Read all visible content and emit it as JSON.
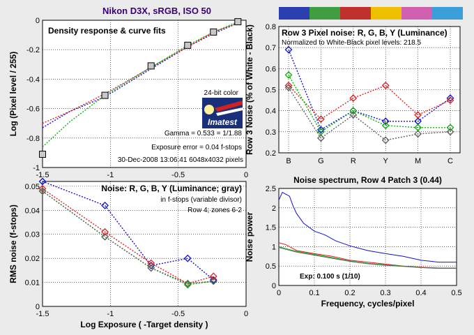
{
  "page_title": "Nikon D3X, sRGB, ISO 50",
  "colors": {
    "title": "#3a007a",
    "red": "#e02020",
    "green": "#10b010",
    "blue": "#1010d0",
    "gray": "#606060",
    "pink": "#e08890",
    "swatches": [
      "#2b3fb0",
      "#3f9e3f",
      "#c0302c",
      "#f0c000",
      "#d060b0",
      "#3a9ed8"
    ]
  },
  "logo": {
    "name": "imatest-logo",
    "text": "Imatest",
    "label": "24-bit color"
  },
  "chart_data": [
    {
      "id": "density",
      "type": "line",
      "title": "Density response & curve fits",
      "xlabel": "",
      "ylabel": "Log (Pixel level / 255)",
      "xlim": [
        -1.5,
        0
      ],
      "ylim": [
        -1,
        0
      ],
      "xticks": [
        -1.5,
        -1,
        -0.5,
        0
      ],
      "yticks": [
        -1,
        -0.8,
        -0.6,
        -0.4,
        -0.2,
        0
      ],
      "grid": true,
      "markers": {
        "x": [
          -1.5,
          -1.04,
          -0.7,
          -0.43,
          -0.24,
          -0.06
        ],
        "y": [
          -0.91,
          -0.51,
          -0.31,
          -0.17,
          -0.08,
          -0.01
        ]
      },
      "fits": [
        {
          "color": "blue",
          "x": [
            -1.5,
            -1.3,
            -1.04,
            -0.7,
            -0.43,
            -0.24,
            -0.06
          ],
          "y": [
            -0.73,
            -0.62,
            -0.52,
            -0.33,
            -0.18,
            -0.09,
            -0.02
          ]
        },
        {
          "color": "red",
          "x": [
            -1.5,
            -1.3,
            -1.04,
            -0.7,
            -0.43,
            -0.24,
            -0.06
          ],
          "y": [
            -0.7,
            -0.62,
            -0.5,
            -0.32,
            -0.18,
            -0.08,
            -0.02
          ]
        },
        {
          "color": "green",
          "x": [
            -1.5,
            -1.3,
            -1.04,
            -0.7,
            -0.43,
            -0.24,
            -0.06
          ],
          "y": [
            -0.86,
            -0.69,
            -0.51,
            -0.32,
            -0.17,
            -0.08,
            -0.01
          ]
        }
      ],
      "annotations": {
        "gamma": "Gamma = 0.533 = 1/1.88",
        "exposure_error": "Exposure error = 0.04 f-stops",
        "footer": "30-Dec-2008 13:06:41   6048x4032 pixels"
      }
    },
    {
      "id": "row3",
      "type": "line",
      "title": "Row 3 Pixel noise: R, G, B, Y (Luminance)",
      "subtitle": "Normalized to White-Black pixel levels: 218.5",
      "ylabel": "Row 3 Noise (% of White - Black)",
      "categories": [
        "B",
        "G",
        "R",
        "Y",
        "M",
        "C"
      ],
      "ylim": [
        0.2,
        0.8
      ],
      "yticks": [
        0.2,
        0.3,
        0.4,
        0.5,
        0.6,
        0.7,
        0.8
      ],
      "grid": true,
      "series": [
        {
          "color": "blue",
          "values": [
            0.69,
            0.31,
            0.4,
            0.35,
            0.35,
            0.46
          ]
        },
        {
          "color": "red",
          "values": [
            0.52,
            0.36,
            0.46,
            0.52,
            0.38,
            0.45
          ]
        },
        {
          "color": "green",
          "values": [
            0.57,
            0.3,
            0.4,
            0.33,
            0.32,
            0.32
          ]
        },
        {
          "color": "gray",
          "values": [
            0.51,
            0.27,
            0.38,
            0.26,
            0.29,
            0.3
          ]
        }
      ]
    },
    {
      "id": "noise",
      "type": "line",
      "title": "Noise: R, G, B, Y (Luminance; gray)",
      "subtitle": "in f-stops (variable divisor)",
      "note": "Row 4; zones 6-2",
      "xlabel": "Log Exposure ( -Target density )",
      "ylabel": "RMS noise (f-stops)",
      "xlim": [
        -1.5,
        0
      ],
      "ylim": [
        0,
        0.052
      ],
      "xticks": [
        -1.5,
        -1,
        -0.5,
        0
      ],
      "yticks": [
        0,
        0.01,
        0.02,
        0.03,
        0.04,
        0.05
      ],
      "grid": true,
      "x": [
        -1.5,
        -1.04,
        -0.7,
        -0.43,
        -0.24
      ],
      "series": [
        {
          "color": "blue",
          "values": [
            0.052,
            0.042,
            0.017,
            0.02,
            0.011
          ]
        },
        {
          "color": "red",
          "values": [
            0.049,
            0.031,
            0.018,
            0.0095,
            0.0125
          ]
        },
        {
          "color": "green",
          "values": [
            0.048,
            0.029,
            0.016,
            0.009,
            0.0105
          ]
        },
        {
          "color": "gray",
          "values": [
            0.048,
            0.029,
            0.016,
            0.0095,
            0.0105
          ]
        }
      ]
    },
    {
      "id": "spectrum",
      "type": "line",
      "title": "Noise spectrum, Row 4 Patch 3 (0.44)",
      "xlabel": "Frequency, cycles/pixel",
      "ylabel": "Noise power",
      "xlim": [
        0,
        0.5
      ],
      "ylim": [
        0,
        2.5
      ],
      "xticks": [
        0,
        0.1,
        0.2,
        0.3,
        0.4,
        0.5
      ],
      "yticks": [
        0,
        0.5,
        1,
        1.5,
        2,
        2.5
      ],
      "grid": true,
      "annotation": "Exp:  0.100 s  (1/10)",
      "series": [
        {
          "color": "blue",
          "x": [
            0,
            0.01,
            0.02,
            0.03,
            0.04,
            0.05,
            0.07,
            0.1,
            0.13,
            0.16,
            0.2,
            0.25,
            0.3,
            0.35,
            0.4,
            0.45,
            0.5
          ],
          "values": [
            2.2,
            2.4,
            2.35,
            2.3,
            2.05,
            1.85,
            1.6,
            1.4,
            1.3,
            1.15,
            1.02,
            0.9,
            0.82,
            0.75,
            0.65,
            0.6,
            0.6
          ]
        },
        {
          "color": "red",
          "x": [
            0,
            0.02,
            0.05,
            0.1,
            0.15,
            0.2,
            0.25,
            0.3,
            0.35,
            0.4,
            0.45,
            0.5
          ],
          "values": [
            1.1,
            1.05,
            0.9,
            0.82,
            0.75,
            0.65,
            0.6,
            0.55,
            0.5,
            0.47,
            0.45,
            0.45
          ]
        },
        {
          "color": "green",
          "x": [
            0,
            0.02,
            0.05,
            0.1,
            0.15,
            0.2,
            0.25,
            0.3,
            0.35,
            0.4,
            0.45,
            0.5
          ],
          "values": [
            1.0,
            0.95,
            0.88,
            0.8,
            0.72,
            0.63,
            0.57,
            0.53,
            0.5,
            0.46,
            0.44,
            0.45
          ]
        },
        {
          "color": "gray",
          "x": [
            0,
            0.02,
            0.05,
            0.1,
            0.15,
            0.2,
            0.25,
            0.3,
            0.35,
            0.4,
            0.45,
            0.5
          ],
          "values": [
            0.98,
            0.93,
            0.86,
            0.78,
            0.7,
            0.62,
            0.56,
            0.52,
            0.49,
            0.46,
            0.44,
            0.44
          ]
        }
      ]
    }
  ]
}
